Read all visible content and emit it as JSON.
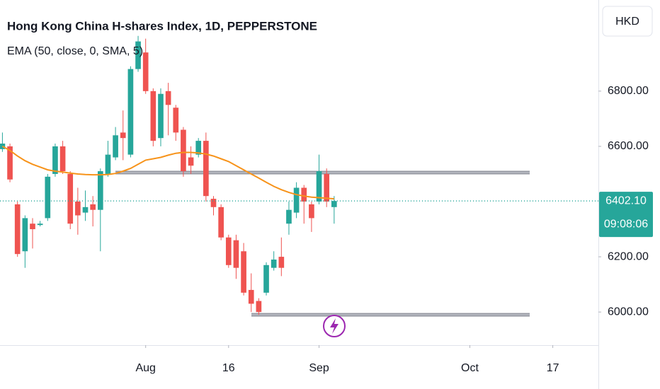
{
  "chart_data": {
    "type": "candlestick",
    "title": "Hong Kong China H-shares Index, 1D, PEPPERSTONE",
    "indicator": "EMA (50, close, 0, SMA, 5)",
    "currency": "HKD",
    "last_price": {
      "value": 6402.1,
      "label": "6402.10"
    },
    "countdown": "09:08:06",
    "up_color": "#26a69a",
    "down_color": "#ef5350",
    "ema_color": "#f7931a",
    "level_color": "#9598a1",
    "levels": [
      6505,
      5990
    ],
    "ylim": [
      5880,
      7130
    ],
    "yticks": [
      {
        "value": 6000,
        "label": "6000.00"
      },
      {
        "value": 6200,
        "label": "6200.00"
      },
      {
        "value": 6600,
        "label": "6600.00"
      },
      {
        "value": 6800,
        "label": "6800.00"
      }
    ],
    "xlim": [
      -0.32,
      79.05
    ],
    "xticks": [
      {
        "value": 19,
        "label": "Aug"
      },
      {
        "value": 30,
        "label": "16"
      },
      {
        "value": 42,
        "label": "Sep"
      },
      {
        "value": 62,
        "label": "Oct"
      },
      {
        "value": 73,
        "label": "17"
      }
    ],
    "open": [
      6590,
      6600,
      6390,
      6220,
      6320,
      6315,
      6340,
      6500,
      6600,
      6500,
      6400,
      6360,
      6390,
      6370,
      6500,
      6560,
      6650,
      6570,
      6880,
      6940,
      6800,
      6630,
      6800,
      6740,
      6660,
      6560,
      6570,
      6620,
      6410,
      6380,
      6270,
      6260,
      6220,
      6080,
      6040,
      6070,
      6160,
      6200,
      6320,
      6360,
      6450,
      6390,
      6400,
      6500,
      6380
    ],
    "high": [
      6650,
      6610,
      6400,
      6350,
      6340,
      6330,
      6500,
      6610,
      6620,
      6510,
      6450,
      6440,
      6420,
      6520,
      6620,
      6670,
      6730,
      6890,
      7000,
      6990,
      6810,
      6810,
      6830,
      6750,
      6670,
      6600,
      6630,
      6650,
      6420,
      6390,
      6280,
      6280,
      6250,
      6140,
      6050,
      6180,
      6220,
      6270,
      6400,
      6470,
      6460,
      6400,
      6570,
      6520,
      6420
    ],
    "low": [
      6580,
      6470,
      6200,
      6160,
      6230,
      6310,
      6330,
      6490,
      6500,
      6300,
      6280,
      6330,
      6310,
      6220,
      6490,
      6550,
      6550,
      6560,
      6870,
      6790,
      6600,
      6600,
      6640,
      6620,
      6490,
      6500,
      6560,
      6400,
      6350,
      6260,
      6160,
      6120,
      6060,
      6000,
      5990,
      6060,
      6150,
      6130,
      6280,
      6340,
      6320,
      6290,
      6390,
      6380,
      6320
    ],
    "close": [
      6610,
      6480,
      6210,
      6340,
      6300,
      6320,
      6490,
      6600,
      6510,
      6320,
      6350,
      6380,
      6370,
      6510,
      6570,
      6640,
      6630,
      6880,
      6980,
      6800,
      6620,
      6790,
      6750,
      6650,
      6510,
      6530,
      6620,
      6420,
      6380,
      6270,
      6170,
      6160,
      6070,
      6030,
      6000,
      6170,
      6190,
      6160,
      6370,
      6450,
      6400,
      6340,
      6510,
      6400,
      6402.1
    ],
    "ema": [
      6600,
      6585,
      6565,
      6548,
      6535,
      6525,
      6515,
      6510,
      6507,
      6503,
      6500,
      6498,
      6497,
      6497,
      6498,
      6502,
      6510,
      6520,
      6535,
      6550,
      6555,
      6560,
      6568,
      6575,
      6578,
      6578,
      6576,
      6572,
      6565,
      6555,
      6545,
      6530,
      6515,
      6500,
      6485,
      6470,
      6455,
      6443,
      6433,
      6425,
      6420,
      6416,
      6414,
      6412,
      6410
    ]
  }
}
